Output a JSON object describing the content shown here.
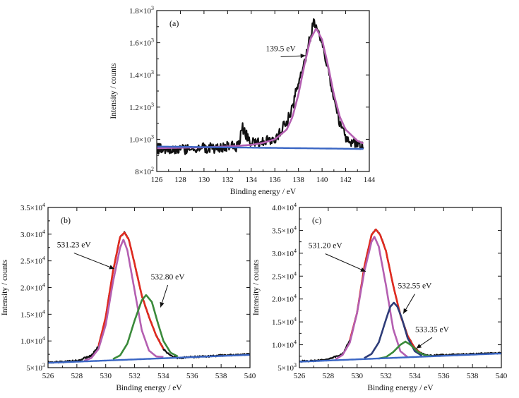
{
  "chart_data": [
    {
      "panel_label": "(a)",
      "type": "line",
      "xlabel": "Binding energy / eV",
      "ylabel": "Intensity / counts",
      "xlim": [
        126,
        144
      ],
      "ylim": [
        800,
        1800
      ],
      "x_ticks": [
        126,
        128,
        130,
        132,
        134,
        136,
        138,
        140,
        142,
        144
      ],
      "x_tick_labels": [
        "126",
        "128",
        "130",
        "132",
        "134",
        "136",
        "138",
        "140",
        "142",
        "144"
      ],
      "y_ticks": [
        800,
        1000,
        1200,
        1400,
        1600,
        1800
      ],
      "y_tick_labels": [
        {
          "base": "8×10",
          "exp": "2"
        },
        {
          "base": "1.0×10",
          "exp": "3"
        },
        {
          "base": "1.2×10",
          "exp": "3"
        },
        {
          "base": "1.4×10",
          "exp": "3"
        },
        {
          "base": "1.6×10",
          "exp": "3"
        },
        {
          "base": "1.8×10",
          "exp": "3"
        }
      ],
      "series": [
        {
          "role": "raw",
          "color": "#111111",
          "x": [
            126,
            127,
            128,
            129,
            130,
            131,
            132,
            133,
            133.2,
            134,
            135,
            136,
            136.5,
            137,
            137.5,
            138,
            138.5,
            139,
            139.3,
            139.5,
            139.8,
            140.2,
            140.6,
            141,
            141.5,
            142,
            142.5,
            143,
            143.5
          ],
          "y": [
            945,
            930,
            935,
            940,
            945,
            950,
            955,
            960,
            1080,
            975,
            985,
            1000,
            1050,
            1110,
            1200,
            1360,
            1480,
            1640,
            1740,
            1710,
            1650,
            1540,
            1400,
            1240,
            1090,
            1020,
            985,
            970,
            965
          ],
          "noise": 35
        },
        {
          "role": "fit",
          "color": "#b45fb1",
          "x": [
            126,
            128,
            130,
            132,
            134,
            135,
            136,
            137,
            137.5,
            138,
            138.5,
            139,
            139.5,
            140,
            140.5,
            141,
            141.5,
            142,
            143,
            143.5
          ],
          "y": [
            945,
            948,
            950,
            955,
            965,
            978,
            1000,
            1060,
            1140,
            1280,
            1460,
            1620,
            1690,
            1620,
            1460,
            1280,
            1140,
            1060,
            990,
            975
          ]
        },
        {
          "role": "background",
          "color": "#3a66c4",
          "x": [
            126,
            143.5
          ],
          "y": [
            955,
            940
          ]
        }
      ],
      "annotations": [
        {
          "text": "139.5 eV",
          "x": 138.6,
          "y": 1520,
          "tx": 136.5,
          "ty": 1530
        }
      ]
    },
    {
      "panel_label": "(b)",
      "type": "line",
      "xlabel": "Binding energy / eV",
      "ylabel": "Intensity / counts",
      "xlim": [
        526,
        540
      ],
      "ylim": [
        5000,
        35000
      ],
      "x_ticks": [
        526,
        528,
        530,
        532,
        534,
        536,
        538,
        540
      ],
      "x_tick_labels": [
        "526",
        "528",
        "530",
        "532",
        "534",
        "536",
        "538",
        "540"
      ],
      "y_ticks": [
        5000,
        10000,
        15000,
        20000,
        25000,
        30000,
        35000
      ],
      "y_tick_labels": [
        {
          "base": "5×10",
          "exp": "3"
        },
        {
          "base": "1.0×10",
          "exp": "4"
        },
        {
          "base": "1.5×10",
          "exp": "4"
        },
        {
          "base": "2.0×10",
          "exp": "4"
        },
        {
          "base": "2.5×10",
          "exp": "4"
        },
        {
          "base": "3.0×10",
          "exp": "4"
        },
        {
          "base": "3.5×10",
          "exp": "4"
        }
      ],
      "series": [
        {
          "role": "raw",
          "color": "#111111",
          "x": [
            526,
            527,
            528,
            529,
            529.5,
            530,
            530.5,
            531,
            531.3,
            531.6,
            532,
            532.5,
            533,
            533.5,
            534,
            534.5,
            535,
            536,
            537,
            538,
            539,
            540
          ],
          "y": [
            6000,
            6100,
            6300,
            7200,
            9000,
            14500,
            23000,
            29500,
            30300,
            29000,
            24500,
            18500,
            14500,
            11000,
            8500,
            7200,
            6800,
            7000,
            7100,
            7300,
            7400,
            7500
          ],
          "noise": 150
        },
        {
          "role": "envelope",
          "color": "#e02a1f",
          "x": [
            529.5,
            530,
            530.5,
            531,
            531.3,
            531.6,
            532,
            532.5,
            533,
            533.5,
            534
          ],
          "y": [
            9000,
            14500,
            23000,
            29500,
            30300,
            29000,
            24500,
            18500,
            14500,
            11000,
            8500
          ]
        },
        {
          "role": "peak",
          "label": "531.23 eV",
          "color": "#b45fb1",
          "x": [
            528.5,
            529,
            529.5,
            530,
            530.5,
            531,
            531.23,
            531.5,
            532,
            532.5,
            533,
            533.5,
            534
          ],
          "y": [
            6300,
            6800,
            8500,
            13000,
            21000,
            27500,
            29000,
            27000,
            19500,
            12000,
            8200,
            7100,
            7000
          ]
        },
        {
          "role": "peak",
          "label": "532.80 eV",
          "color": "#3a8a3a",
          "x": [
            530.5,
            531,
            531.5,
            532,
            532.5,
            532.8,
            533.2,
            533.6,
            534,
            534.5,
            535
          ],
          "y": [
            6600,
            7300,
            9500,
            13800,
            17600,
            18600,
            17300,
            13500,
            10000,
            7800,
            7100
          ]
        },
        {
          "role": "background",
          "color": "#3a66c4",
          "x": [
            526,
            540
          ],
          "y": [
            5900,
            7400
          ]
        }
      ],
      "annotations": [
        {
          "text": "531.23 eV",
          "x": 530.6,
          "y": 23500,
          "tx": 527.8,
          "ty": 27000
        },
        {
          "text": "532.80 eV",
          "x": 533.8,
          "y": 16300,
          "tx": 534.3,
          "ty": 21000
        }
      ]
    },
    {
      "panel_label": "(c)",
      "type": "line",
      "xlabel": "Binding energy / eV",
      "ylabel": "Intensity / counts",
      "xlim": [
        526,
        540
      ],
      "ylim": [
        5000,
        40000
      ],
      "x_ticks": [
        526,
        528,
        530,
        532,
        534,
        536,
        538,
        540
      ],
      "x_tick_labels": [
        "526",
        "528",
        "530",
        "532",
        "534",
        "536",
        "538",
        "540"
      ],
      "y_ticks": [
        5000,
        10000,
        15000,
        20000,
        25000,
        30000,
        35000,
        40000
      ],
      "y_tick_labels": [
        {
          "base": "5×10",
          "exp": "3"
        },
        {
          "base": "1.0×10",
          "exp": "4"
        },
        {
          "base": "1.5×10",
          "exp": "4"
        },
        {
          "base": "2.0×10",
          "exp": "4"
        },
        {
          "base": "2.5×10",
          "exp": "4"
        },
        {
          "base": "3.0×10",
          "exp": "4"
        },
        {
          "base": "3.5×10",
          "exp": "4"
        },
        {
          "base": "4.0×10",
          "exp": "4"
        }
      ],
      "series": [
        {
          "role": "raw",
          "color": "#111111",
          "x": [
            526,
            527,
            528,
            529,
            529.5,
            530,
            530.5,
            531,
            531.3,
            531.6,
            532,
            532.5,
            533,
            533.5,
            534,
            534.5,
            535,
            536,
            537,
            538,
            539,
            540
          ],
          "y": [
            6400,
            6500,
            6800,
            8000,
            11000,
            17000,
            27000,
            34000,
            35200,
            34000,
            30500,
            23000,
            16500,
            12000,
            9200,
            8000,
            7600,
            7800,
            7900,
            8000,
            8100,
            8200
          ],
          "noise": 150
        },
        {
          "role": "envelope",
          "color": "#e02a1f",
          "x": [
            529.5,
            530,
            530.5,
            531,
            531.3,
            531.6,
            532,
            532.5,
            533,
            533.5,
            534,
            534.5
          ],
          "y": [
            11000,
            17000,
            27000,
            34000,
            35200,
            34000,
            30500,
            23000,
            16500,
            12000,
            9200,
            8000
          ]
        },
        {
          "role": "peak",
          "label": "531.20 eV",
          "color": "#b45fb1",
          "x": [
            528.5,
            529,
            529.5,
            530,
            530.5,
            531,
            531.2,
            531.5,
            532,
            532.5,
            533,
            533.5
          ],
          "y": [
            6800,
            7800,
            10500,
            17000,
            26000,
            32500,
            33600,
            31500,
            23000,
            13500,
            8600,
            7300
          ]
        },
        {
          "role": "peak",
          "label": "532.55 eV",
          "color": "#2e3c78",
          "x": [
            530.5,
            531,
            531.5,
            532,
            532.3,
            532.55,
            532.8,
            533.1,
            533.5,
            534,
            534.5
          ],
          "y": [
            7100,
            8000,
            10500,
            15500,
            18300,
            19200,
            18300,
            15800,
            11500,
            8600,
            7600
          ]
        },
        {
          "role": "peak",
          "label": "533.35 eV",
          "color": "#3a8a3a",
          "x": [
            531.5,
            532,
            532.5,
            533,
            533.35,
            533.7,
            534.2,
            534.7,
            535.2
          ],
          "y": [
            7000,
            7300,
            8400,
            10000,
            10700,
            10000,
            8500,
            7700,
            7500
          ]
        },
        {
          "role": "background",
          "color": "#3a66c4",
          "x": [
            526,
            540
          ],
          "y": [
            6300,
            8100
          ]
        }
      ],
      "annotations": [
        {
          "text": "531.20 eV",
          "x": 530.6,
          "y": 26000,
          "tx": 527.8,
          "ty": 30500
        },
        {
          "text": "532.55 eV",
          "x": 533.2,
          "y": 16800,
          "tx": 534.0,
          "ty": 21700
        },
        {
          "text": "533.35 eV",
          "x": 534.1,
          "y": 9200,
          "tx": 535.2,
          "ty": 12200
        }
      ]
    }
  ]
}
